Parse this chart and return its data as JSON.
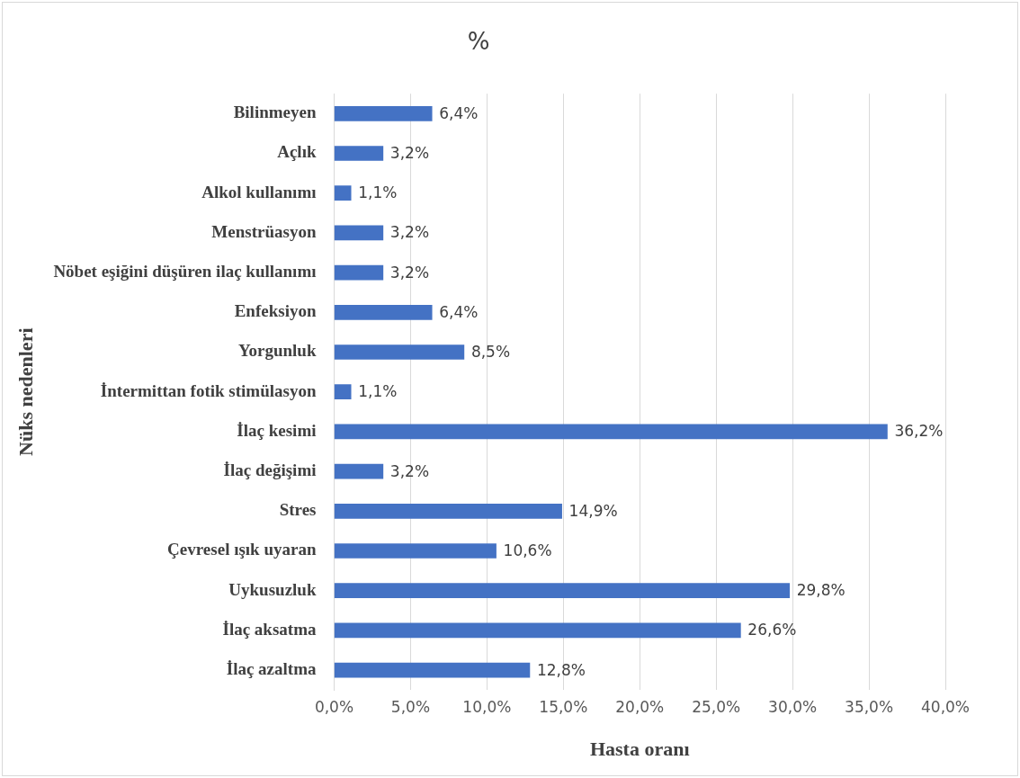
{
  "chart_data": {
    "type": "bar",
    "orientation": "horizontal",
    "title": "%",
    "xlabel": "Hasta oranı",
    "ylabel": "Nüks nedenleri",
    "categories": [
      "Bilinmeyen",
      "Açlık",
      "Alkol kullanımı",
      "Menstrüasyon",
      "Nöbet eşiğini düşüren ilaç kullanımı",
      "Enfeksiyon",
      "Yorgunluk",
      "İntermittan fotik stimülasyon",
      "İlaç kesimi",
      "İlaç değişimi",
      "Stres",
      "Çevresel ışık uyaran",
      "Uykusuzluk",
      "İlaç aksatma",
      "İlaç azaltma"
    ],
    "values": [
      6.4,
      3.2,
      1.1,
      3.2,
      3.2,
      6.4,
      8.5,
      1.1,
      36.2,
      3.2,
      14.9,
      10.6,
      29.8,
      26.6,
      12.8
    ],
    "value_labels": [
      "6,4%",
      "3,2%",
      "1,1%",
      "3,2%",
      "3,2%",
      "6,4%",
      "8,5%",
      "1,1%",
      "36,2%",
      "3,2%",
      "14,9%",
      "10,6%",
      "29,8%",
      "26,6%",
      "12,8%"
    ],
    "color": "#4472c4",
    "xlim": [
      0,
      40
    ],
    "xticks": [
      {
        "value": 0,
        "label": "0,0%"
      },
      {
        "value": 5,
        "label": "5,0%"
      },
      {
        "value": 10,
        "label": "10,0%"
      },
      {
        "value": 15,
        "label": "15,0%"
      },
      {
        "value": 20,
        "label": "20,0%"
      },
      {
        "value": 25,
        "label": "25,0%"
      },
      {
        "value": 30,
        "label": "30,0%"
      },
      {
        "value": 35,
        "label": "35,0%"
      },
      {
        "value": 40,
        "label": "40,0%"
      }
    ],
    "grid": "x",
    "legend": false
  }
}
